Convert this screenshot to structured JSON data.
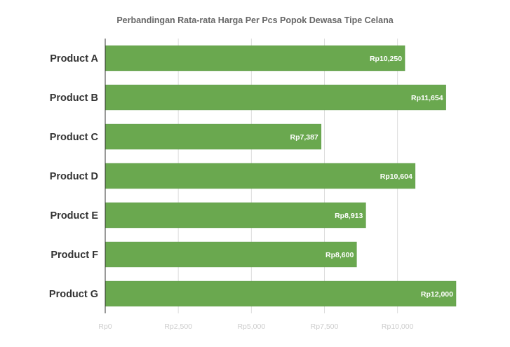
{
  "chart_data": {
    "type": "bar",
    "orientation": "horizontal",
    "title": "Perbandingan Rata-rata Harga Per Pcs Popok Dewasa Tipe Celana",
    "categories": [
      "Product A",
      "Product B",
      "Product C",
      "Product D",
      "Product E",
      "Product F",
      "Product G"
    ],
    "values": [
      10250,
      11654,
      7387,
      10604,
      8913,
      8600,
      12000
    ],
    "data_labels": [
      "Rp10,250",
      "Rp11,654",
      "Rp7,387",
      "Rp10,604",
      "Rp8,913",
      "Rp8,600",
      "Rp12,000"
    ],
    "x_ticks": [
      0,
      2500,
      5000,
      7500,
      10000
    ],
    "x_tick_labels": [
      "Rp0",
      "Rp2,500",
      "Rp5,000",
      "Rp7,500",
      "Rp10,000"
    ],
    "xlim": [
      0,
      12000
    ],
    "xlabel": "",
    "ylabel": "",
    "grid": "vertical",
    "legend": "none",
    "bar_color": "#6aa84f"
  }
}
